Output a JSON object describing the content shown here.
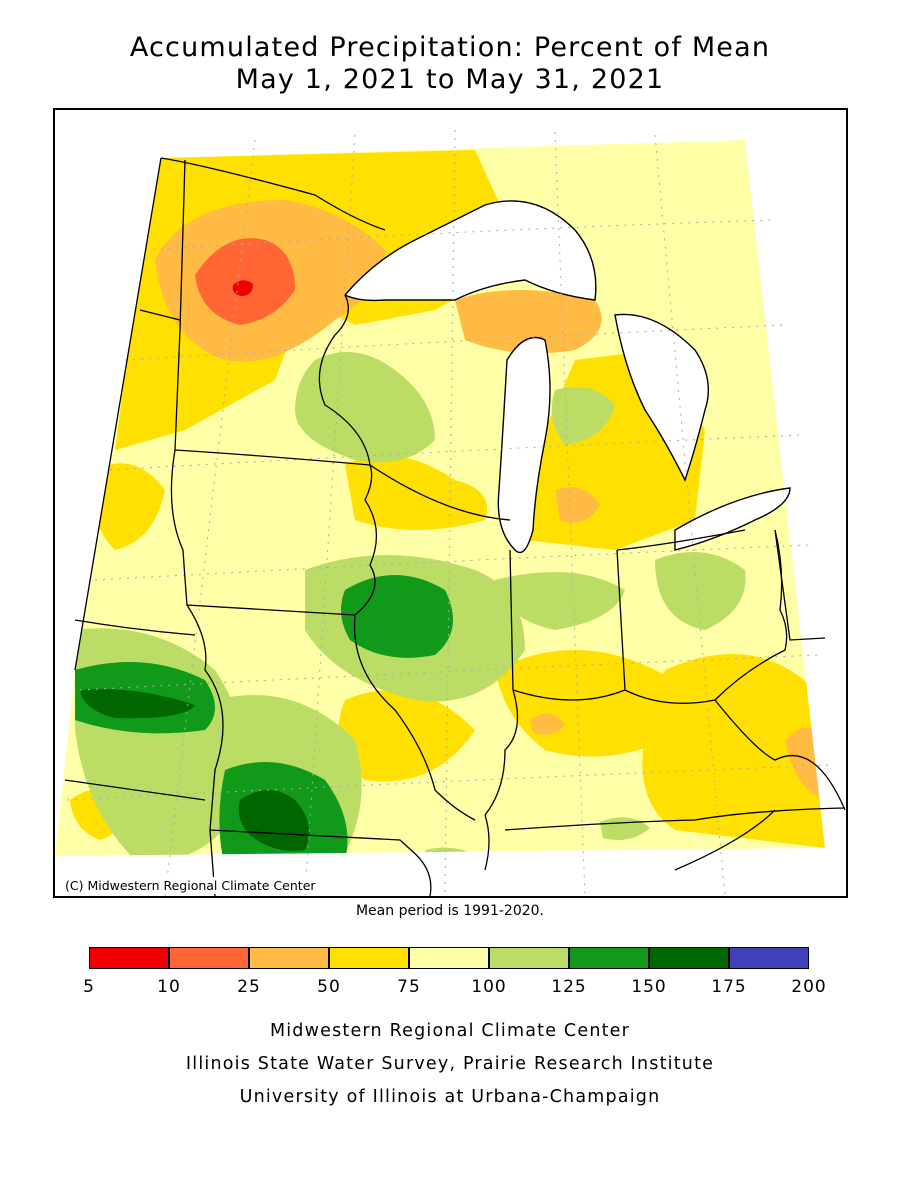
{
  "title": {
    "line1": "Accumulated Precipitation: Percent of Mean",
    "line2": "May 1, 2021 to May 31, 2021"
  },
  "map": {
    "copyright": "(C) Midwestern Regional Climate Center",
    "colors": {
      "lake": "#ffffff",
      "boundary": "#000000",
      "graticule": "#aaaaaa"
    }
  },
  "mean_period": "Mean period is 1991-2020.",
  "legend": {
    "ticks": [
      "5",
      "10",
      "25",
      "50",
      "75",
      "100",
      "125",
      "150",
      "175",
      "200"
    ],
    "bins": [
      {
        "from": 5,
        "to": 10,
        "color": "#ee0000"
      },
      {
        "from": 10,
        "to": 25,
        "color": "#ff6633"
      },
      {
        "from": 25,
        "to": 50,
        "color": "#ffbb44"
      },
      {
        "from": 50,
        "to": 75,
        "color": "#ffe000"
      },
      {
        "from": 75,
        "to": 100,
        "color": "#ffffa8"
      },
      {
        "from": 100,
        "to": 125,
        "color": "#bbdd66"
      },
      {
        "from": 125,
        "to": 150,
        "color": "#119a1a"
      },
      {
        "from": 150,
        "to": 175,
        "color": "#006600"
      },
      {
        "from": 175,
        "to": 200,
        "color": "#4040bb"
      }
    ]
  },
  "credits": {
    "line1": "Midwestern Regional Climate Center",
    "line2": "Illinois State Water Survey, Prairie Research Institute",
    "line3": "University of Illinois at Urbana-Champaign"
  }
}
